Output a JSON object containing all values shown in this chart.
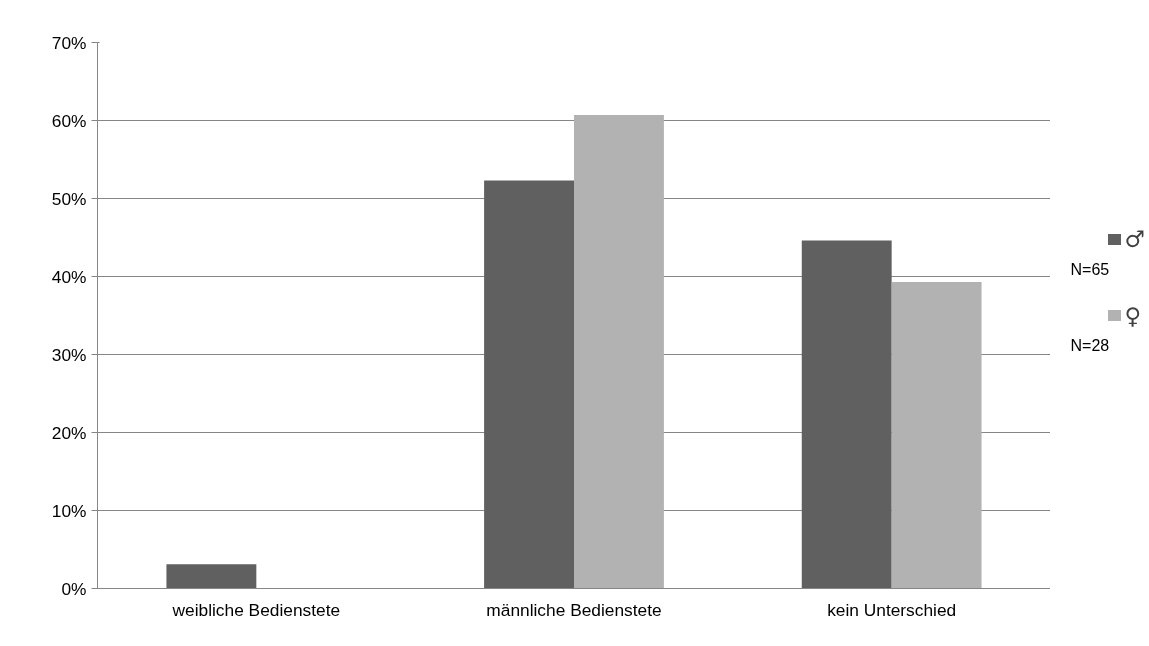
{
  "chart_data": {
    "type": "bar",
    "categories": [
      "weibliche Bedienstete",
      "männliche Bedienstete",
      "kein Unterschied"
    ],
    "series": [
      {
        "name": "♂",
        "color": "#606060",
        "values": [
          3.1,
          52.3,
          44.6
        ]
      },
      {
        "name": "♀",
        "color": "#b2b2b2",
        "values": [
          0,
          60.7,
          39.3
        ]
      }
    ],
    "ylim": [
      0,
      70
    ],
    "yticks": [
      {
        "value": 0,
        "label": "0%"
      },
      {
        "value": 10,
        "label": "10%"
      },
      {
        "value": 20,
        "label": "20%"
      },
      {
        "value": 30,
        "label": "30%"
      },
      {
        "value": 40,
        "label": "40%"
      },
      {
        "value": 50,
        "label": "50%"
      },
      {
        "value": 60,
        "label": "60%"
      },
      {
        "value": 70,
        "label": "70%"
      }
    ],
    "grid": "y",
    "legend": "right",
    "annotations": [
      "N=65",
      "N=28"
    ]
  }
}
